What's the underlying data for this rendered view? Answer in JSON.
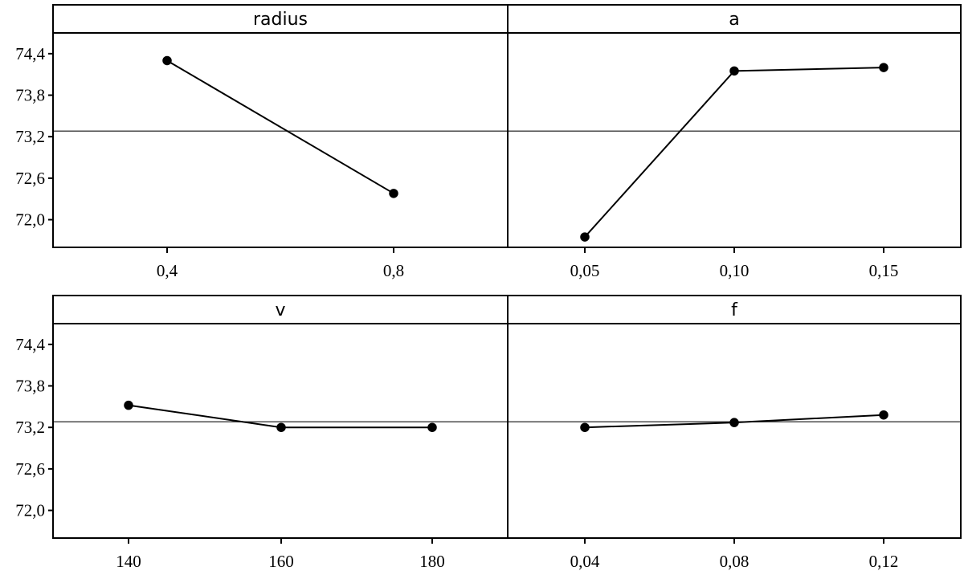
{
  "chart_data": {
    "type": "line",
    "layout": "2x2 panel grid of main-effects plots, shared y axis per row",
    "ylim": [
      71.6,
      74.7
    ],
    "yticks": [
      "72,0",
      "72,6",
      "73,2",
      "73,8",
      "74,4"
    ],
    "ytick_values": [
      72.0,
      72.6,
      73.2,
      73.8,
      74.4
    ],
    "reference_line": 73.28,
    "grid": false,
    "legend": "none",
    "colors": {
      "line": "#000000",
      "reference": "#4a4a4a",
      "frame": "#000000"
    },
    "panels": [
      {
        "title": "radius",
        "categories": [
          "0,4",
          "0,8"
        ],
        "values": [
          74.3,
          72.38
        ]
      },
      {
        "title": "a",
        "categories": [
          "0,05",
          "0,10",
          "0,15"
        ],
        "values": [
          71.75,
          74.15,
          74.2
        ]
      },
      {
        "title": "v",
        "categories": [
          "140",
          "160",
          "180"
        ],
        "values": [
          73.52,
          73.2,
          73.2
        ]
      },
      {
        "title": "f",
        "categories": [
          "0,04",
          "0,08",
          "0,12"
        ],
        "values": [
          73.2,
          73.27,
          73.38
        ]
      }
    ]
  }
}
